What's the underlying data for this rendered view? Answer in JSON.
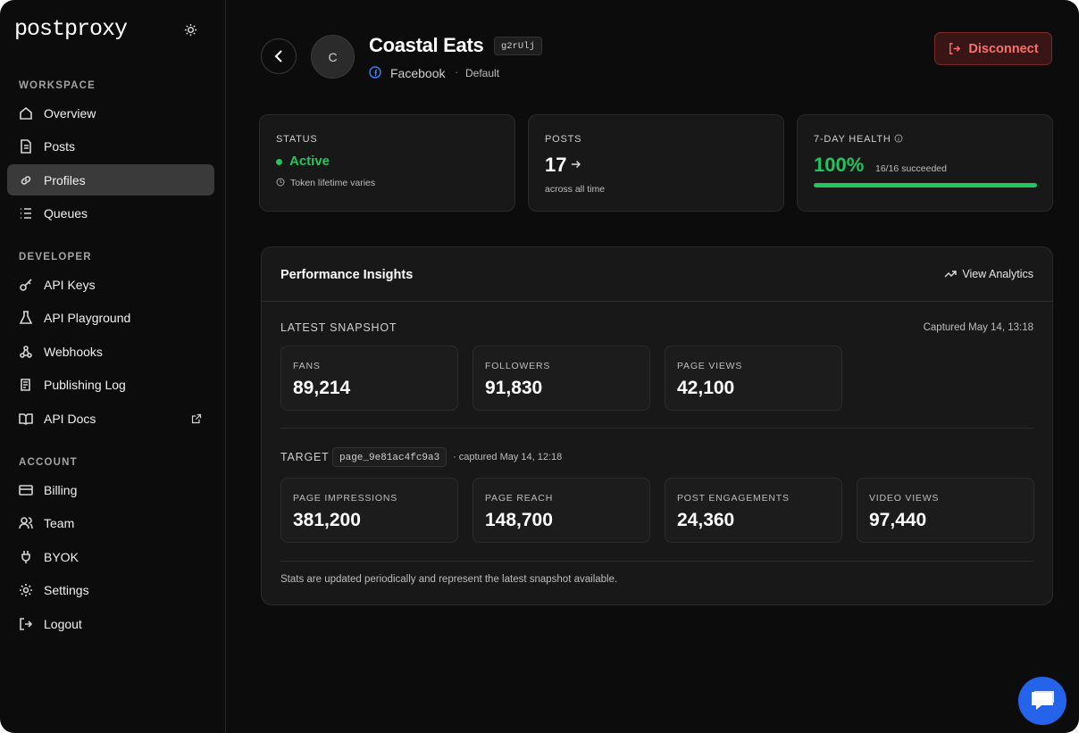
{
  "sidebar": {
    "logo": "postproxy",
    "sections": [
      {
        "title": "WORKSPACE",
        "items": [
          "Overview",
          "Posts",
          "Profiles",
          "Queues"
        ]
      },
      {
        "title": "DEVELOPER",
        "items": [
          "API Keys",
          "API Playground",
          "Webhooks",
          "Publishing Log",
          "API Docs"
        ]
      },
      {
        "title": "ACCOUNT",
        "items": [
          "Billing",
          "Team",
          "BYOK",
          "Settings",
          "Logout"
        ]
      }
    ]
  },
  "header": {
    "avatar": "C",
    "name": "Coastal Eats",
    "id": "g2rUlj",
    "platform": "Facebook",
    "group": "Default",
    "action": "Disconnect"
  },
  "cards": [
    {
      "label": "STATUS",
      "value": "Active",
      "note": "Token lifetime varies"
    },
    {
      "label": "POSTS",
      "value": "17",
      "note": "across all time"
    },
    {
      "label": "7-DAY HEALTH",
      "value": "100%",
      "note": "16/16 succeeded"
    }
  ],
  "insights": {
    "title": "Performance Insights",
    "link": "View Analytics",
    "snapshot": {
      "title": "LATEST SNAPSHOT",
      "captured": "Captured May 14, 13:18",
      "metrics": [
        {
          "label": "FANS",
          "value": "89,214"
        },
        {
          "label": "FOLLOWERS",
          "value": "91,830"
        },
        {
          "label": "PAGE VIEWS",
          "value": "42,100"
        }
      ]
    },
    "target": {
      "title": "TARGET",
      "id": "page_9e81ac4fc9a3",
      "captured": "· captured May 14, 12:18",
      "metrics": [
        {
          "label": "PAGE IMPRESSIONS",
          "value": "381,200"
        },
        {
          "label": "PAGE REACH",
          "value": "148,700"
        },
        {
          "label": "POST ENGAGEMENTS",
          "value": "24,360"
        },
        {
          "label": "VIDEO VIEWS",
          "value": "97,440"
        }
      ]
    },
    "footnote": "Stats are updated periodically and represent the latest snapshot available."
  }
}
